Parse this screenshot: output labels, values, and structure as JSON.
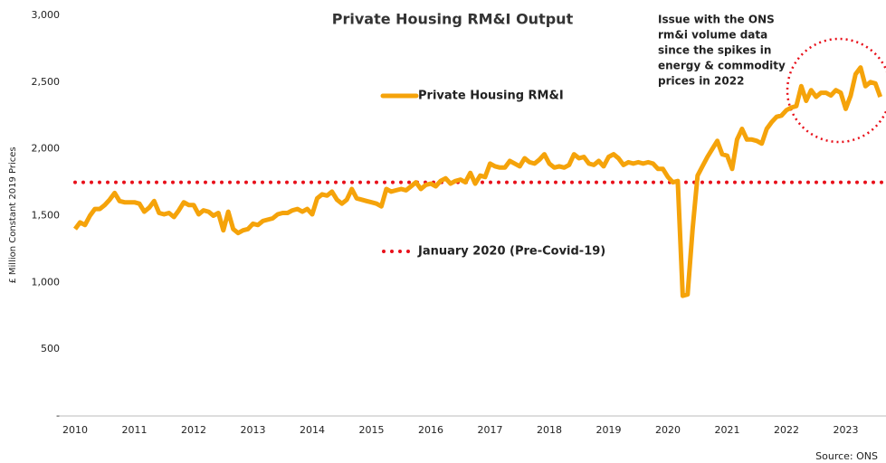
{
  "chart_data": {
    "type": "line",
    "title": "Private Housing RM&I Output",
    "y_label": "£ Million Constant 2019 Prices",
    "source": "Source: ONS",
    "annotation": [
      "Issue with the ONS",
      "rm&i volume data",
      "since the spikes in",
      "energy & commodity",
      "prices in 2022"
    ],
    "annotation_color": "#e8101a",
    "ylim": [
      0,
      3000
    ],
    "yticks": [
      {
        "value": 0,
        "label": "-"
      },
      500,
      {
        "value": 1000,
        "label": "1,000"
      },
      {
        "value": 1500,
        "label": "1,500"
      },
      {
        "value": 2000,
        "label": "2,000"
      },
      {
        "value": 2500,
        "label": "2,500"
      },
      {
        "value": 3000,
        "label": "3,000"
      }
    ],
    "categories": [
      "2010",
      null,
      null,
      null,
      null,
      null,
      null,
      null,
      null,
      null,
      null,
      null,
      "2011",
      null,
      null,
      null,
      null,
      null,
      null,
      null,
      null,
      null,
      null,
      null,
      "2012",
      null,
      null,
      null,
      null,
      null,
      null,
      null,
      null,
      null,
      null,
      null,
      "2013",
      null,
      null,
      null,
      null,
      null,
      null,
      null,
      null,
      null,
      null,
      null,
      "2014",
      null,
      null,
      null,
      null,
      null,
      null,
      null,
      null,
      null,
      null,
      null,
      "2015",
      null,
      null,
      null,
      null,
      null,
      null,
      null,
      null,
      null,
      null,
      null,
      "2016",
      null,
      null,
      null,
      null,
      null,
      null,
      null,
      null,
      null,
      null,
      null,
      "2017",
      null,
      null,
      null,
      null,
      null,
      null,
      null,
      null,
      null,
      null,
      null,
      "2018",
      null,
      null,
      null,
      null,
      null,
      null,
      null,
      null,
      null,
      null,
      null,
      "2019",
      null,
      null,
      null,
      null,
      null,
      null,
      null,
      null,
      null,
      null,
      null,
      "2020",
      null,
      null,
      null,
      null,
      null,
      null,
      null,
      null,
      null,
      null,
      null,
      "2021",
      null,
      null,
      null,
      null,
      null,
      null,
      null,
      null,
      null,
      null,
      null,
      "2022",
      null,
      null,
      null,
      null,
      null,
      null,
      null,
      null,
      null,
      null,
      null,
      "2023",
      null,
      null,
      null,
      null,
      null,
      null,
      null
    ],
    "series": [
      {
        "name": "Private Housing RM&I",
        "color": "#f5a30a",
        "values": [
          1400,
          1450,
          1430,
          1500,
          1550,
          1550,
          1580,
          1620,
          1670,
          1610,
          1600,
          1600,
          1600,
          1590,
          1530,
          1560,
          1610,
          1520,
          1510,
          1520,
          1490,
          1540,
          1600,
          1580,
          1580,
          1510,
          1540,
          1530,
          1500,
          1520,
          1390,
          1530,
          1400,
          1370,
          1390,
          1400,
          1440,
          1430,
          1460,
          1470,
          1480,
          1510,
          1520,
          1520,
          1540,
          1550,
          1530,
          1550,
          1510,
          1630,
          1660,
          1650,
          1680,
          1620,
          1590,
          1620,
          1700,
          1630,
          1620,
          1610,
          1600,
          1590,
          1570,
          1700,
          1680,
          1690,
          1700,
          1690,
          1720,
          1750,
          1700,
          1730,
          1740,
          1720,
          1760,
          1780,
          1740,
          1760,
          1770,
          1750,
          1820,
          1740,
          1800,
          1790,
          1890,
          1870,
          1860,
          1860,
          1910,
          1890,
          1870,
          1930,
          1900,
          1890,
          1920,
          1960,
          1890,
          1860,
          1870,
          1860,
          1880,
          1960,
          1930,
          1940,
          1890,
          1880,
          1910,
          1870,
          1940,
          1960,
          1930,
          1880,
          1900,
          1890,
          1900,
          1890,
          1900,
          1890,
          1850,
          1850,
          1790,
          1750,
          1760,
          900,
          910,
          1400,
          1800,
          1870,
          1940,
          2000,
          2060,
          1960,
          1950,
          1850,
          2070,
          2150,
          2070,
          2070,
          2060,
          2040,
          2150,
          2200,
          2240,
          2250,
          2290,
          2310,
          2320,
          2470,
          2360,
          2440,
          2390,
          2420,
          2420,
          2400,
          2440,
          2420,
          2300,
          2400,
          2560,
          2610,
          2470,
          2500,
          2490,
          2390
        ]
      }
    ],
    "reference_line": {
      "name": "January 2020 (Pre-Covid-19)",
      "value": 1750,
      "color": "#e8101a"
    }
  }
}
